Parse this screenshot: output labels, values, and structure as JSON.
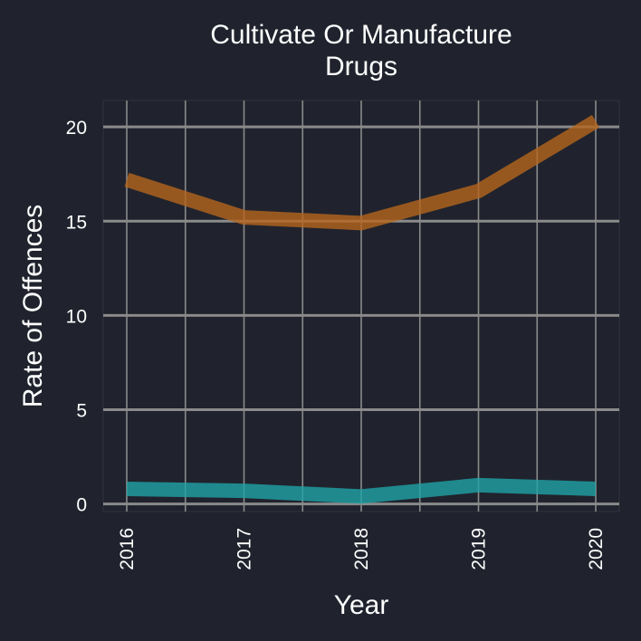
{
  "chart_data": {
    "type": "line",
    "title_lines": [
      "Cultivate Or Manufacture",
      "Drugs"
    ],
    "xlabel": "Year",
    "ylabel": "Rate of Offences",
    "categories": [
      "2016",
      "2017",
      "2018",
      "2019",
      "2020"
    ],
    "y_ticks": [
      "0",
      "5",
      "10",
      "15",
      "20"
    ],
    "ylim": [
      -0.4,
      21.4
    ],
    "grid": true,
    "legend": "none",
    "series": [
      {
        "values": [
          17.2,
          15.2,
          14.9,
          16.6,
          20.3
        ],
        "color": "#b5651d"
      },
      {
        "values": [
          0.8,
          0.7,
          0.4,
          1.0,
          0.8
        ],
        "color": "#1fa3a6"
      }
    ]
  }
}
